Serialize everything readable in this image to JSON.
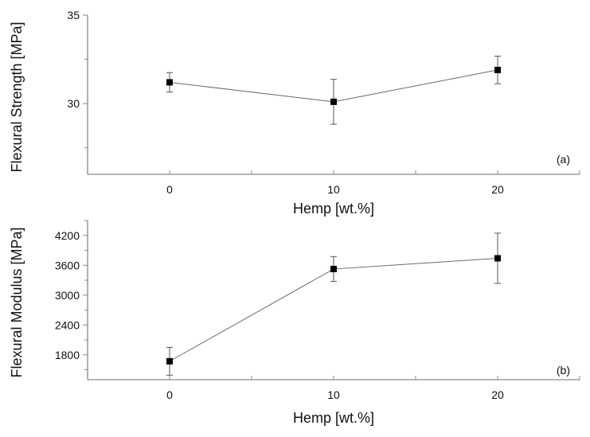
{
  "chart_data": [
    {
      "type": "line",
      "panel": "(a)",
      "title": "",
      "xlabel": "Hemp [wt.%]",
      "ylabel": "Flexural Strength [MPa]",
      "x": [
        0,
        10,
        20
      ],
      "series": [
        {
          "name": "Flexural Strength",
          "values": [
            31.2,
            30.1,
            31.9
          ],
          "error": [
            0.55,
            1.27,
            0.78
          ],
          "marker": "square",
          "color": "#000000"
        }
      ],
      "xlim": [
        -5,
        25
      ],
      "ylim": [
        26,
        35
      ],
      "xticks": [
        0,
        10,
        20
      ],
      "xminor": [
        5,
        15
      ],
      "yticks": [
        30,
        35
      ],
      "yminor": [
        27.5,
        32.5
      ],
      "grid": false,
      "legend": "none"
    },
    {
      "type": "line",
      "panel": "(b)",
      "title": "",
      "xlabel": "Hemp [wt.%]",
      "ylabel": "Flexural Modulus [MPa]",
      "x": [
        0,
        10,
        20
      ],
      "series": [
        {
          "name": "Flexural Modulus",
          "values": [
            1670,
            3525,
            3740
          ],
          "error": [
            280,
            250,
            505
          ],
          "marker": "square",
          "color": "#000000"
        }
      ],
      "xlim": [
        -5,
        25
      ],
      "ylim": [
        1300,
        4500
      ],
      "xticks": [
        0,
        10,
        20
      ],
      "xminor": [
        5,
        15
      ],
      "yticks": [
        1800,
        2400,
        3000,
        3600,
        4200
      ],
      "yminor": [
        1500,
        2100,
        2700,
        3300,
        3900,
        4500
      ],
      "grid": false,
      "legend": "none"
    }
  ]
}
